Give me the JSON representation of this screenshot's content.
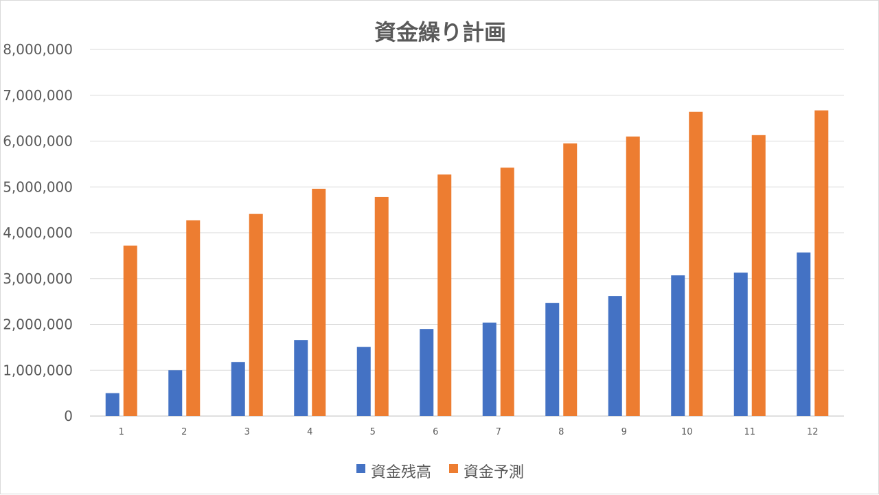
{
  "chart_data": {
    "type": "bar",
    "title": "資金繰り計画",
    "xlabel": "",
    "ylabel": "",
    "categories": [
      "1",
      "2",
      "3",
      "4",
      "5",
      "6",
      "7",
      "8",
      "9",
      "10",
      "11",
      "12"
    ],
    "series": [
      {
        "name": "資金残高",
        "color": "#4472c4",
        "values": [
          500000,
          1000000,
          1180000,
          1660000,
          1510000,
          1900000,
          2040000,
          2470000,
          2620000,
          3070000,
          3130000,
          3570000
        ]
      },
      {
        "name": "資金予測",
        "color": "#ed7d31",
        "values": [
          3720000,
          4270000,
          4410000,
          4960000,
          4780000,
          5270000,
          5420000,
          5950000,
          6100000,
          6640000,
          6130000,
          6670000
        ]
      }
    ],
    "ylim": [
      0,
      8000000
    ],
    "yticks": [
      "0",
      "1,000,000",
      "2,000,000",
      "3,000,000",
      "4,000,000",
      "5,000,000",
      "6,000,000",
      "7,000,000",
      "8,000,000"
    ],
    "grid": true,
    "legend_position": "bottom"
  }
}
